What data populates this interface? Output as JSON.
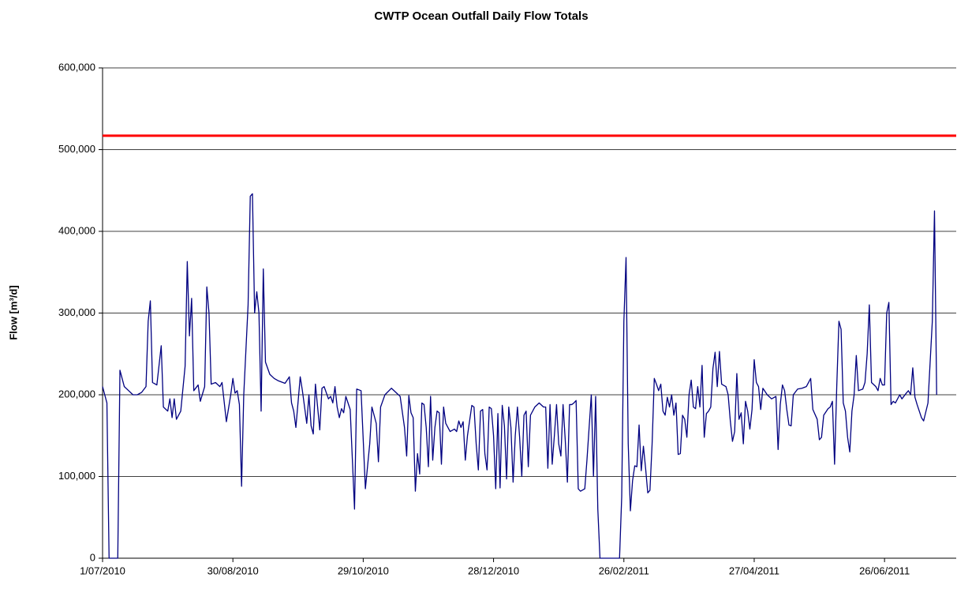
{
  "chart_data": {
    "type": "line",
    "title": "CWTP Ocean Outfall Daily Flow Totals",
    "y_label": "Flow [m³/d]",
    "color": "#000080",
    "threshold": 517000,
    "threshold_color": "#ff0000",
    "xlim": [
      0,
      393
    ],
    "ylim": [
      0,
      600000
    ],
    "grid": true,
    "xticks": [
      {
        "value": 0,
        "label": "1/07/2010"
      },
      {
        "value": 60,
        "label": "30/08/2010"
      },
      {
        "value": 120,
        "label": "29/10/2010"
      },
      {
        "value": 180,
        "label": "28/12/2010"
      },
      {
        "value": 240,
        "label": "26/02/2011"
      },
      {
        "value": 300,
        "label": "27/04/2011"
      },
      {
        "value": 360,
        "label": "26/06/2011"
      }
    ],
    "yticks": [
      0,
      {
        "value": 100000,
        "label": "100,000"
      },
      {
        "value": 200000,
        "label": "200,000"
      },
      {
        "value": 300000,
        "label": "300,000"
      },
      {
        "value": 400000,
        "label": "400,000"
      },
      {
        "value": 500000,
        "label": "500,000"
      },
      {
        "value": 600000,
        "label": "600,000"
      }
    ],
    "x": [
      0,
      2,
      3,
      7,
      8,
      10,
      12,
      14,
      16,
      18,
      20,
      21,
      22,
      23,
      25,
      27,
      28,
      30,
      31,
      32,
      33,
      34,
      36,
      38,
      39,
      40,
      41,
      42,
      44,
      45,
      47,
      48,
      49,
      50,
      52,
      54,
      55,
      57,
      59,
      60,
      61,
      62,
      63,
      64,
      65,
      67,
      68,
      69,
      70,
      71,
      72,
      73,
      74,
      75,
      77,
      79,
      81,
      84,
      86,
      87,
      88,
      89,
      91,
      92,
      94,
      95,
      96,
      97,
      98,
      100,
      101,
      102,
      104,
      105,
      106,
      107,
      108,
      109,
      110,
      111,
      112,
      114,
      116,
      117,
      119,
      121,
      123,
      124,
      126,
      127,
      128,
      130,
      133,
      135,
      137,
      139,
      140,
      141,
      142,
      143,
      144,
      145,
      146,
      147,
      148,
      149,
      150,
      151,
      152,
      153,
      154,
      155,
      156,
      157,
      158,
      160,
      162,
      163,
      164,
      165,
      166,
      167,
      168,
      170,
      171,
      172,
      173,
      174,
      175,
      176,
      177,
      178,
      179,
      180,
      181,
      182,
      183,
      184,
      185,
      186,
      187,
      188,
      189,
      190,
      191,
      192,
      193,
      194,
      195,
      196,
      197,
      199,
      201,
      203,
      204,
      205,
      206,
      207,
      208,
      209,
      210,
      211,
      212,
      213,
      214,
      215,
      216,
      217,
      218,
      219,
      220,
      222,
      223,
      225,
      226,
      227,
      228,
      229,
      238,
      239,
      240,
      241,
      242,
      243,
      244,
      245,
      246,
      247,
      248,
      249,
      250,
      251,
      252,
      253,
      254,
      255,
      256,
      257,
      258,
      259,
      260,
      261,
      262,
      263,
      264,
      265,
      266,
      267,
      268,
      269,
      270,
      271,
      272,
      273,
      274,
      275,
      276,
      277,
      278,
      279,
      280,
      281,
      282,
      283,
      284,
      285,
      287,
      288,
      289,
      290,
      291,
      292,
      293,
      294,
      295,
      296,
      297,
      298,
      299,
      300,
      301,
      302,
      303,
      304,
      306,
      308,
      310,
      311,
      312,
      313,
      314,
      315,
      316,
      317,
      318,
      320,
      322,
      324,
      326,
      327,
      329,
      330,
      331,
      332,
      334,
      335,
      336,
      337,
      338,
      339,
      340,
      341,
      342,
      343,
      344,
      345,
      346,
      347,
      348,
      350,
      351,
      352,
      353,
      354,
      356,
      357,
      358,
      359,
      360,
      361,
      362,
      363,
      364,
      365,
      367,
      368,
      370,
      371,
      372,
      373,
      374,
      375,
      377,
      378,
      380,
      382,
      383,
      384
    ],
    "values": [
      210000,
      190000,
      0,
      0,
      230000,
      210000,
      205000,
      200000,
      200000,
      203000,
      210000,
      290000,
      315000,
      215000,
      212000,
      260000,
      185000,
      180000,
      195000,
      172000,
      195000,
      170000,
      180000,
      235000,
      363000,
      272000,
      318000,
      205000,
      212000,
      192000,
      210000,
      332000,
      300000,
      213000,
      215000,
      210000,
      215000,
      167000,
      200000,
      220000,
      202000,
      205000,
      188000,
      88000,
      200000,
      310000,
      443000,
      446000,
      300000,
      326000,
      300000,
      180000,
      354000,
      240000,
      225000,
      220000,
      217000,
      214000,
      222000,
      190000,
      180000,
      160000,
      222000,
      205000,
      165000,
      200000,
      162000,
      152000,
      213000,
      157000,
      208000,
      210000,
      195000,
      198000,
      190000,
      210000,
      185000,
      172000,
      183000,
      178000,
      198000,
      182000,
      60000,
      207000,
      205000,
      85000,
      140000,
      185000,
      165000,
      118000,
      185000,
      200000,
      208000,
      203000,
      198000,
      160000,
      125000,
      199000,
      178000,
      172000,
      82000,
      128000,
      103000,
      190000,
      188000,
      160000,
      112000,
      198000,
      120000,
      160000,
      180000,
      178000,
      115000,
      185000,
      165000,
      155000,
      158000,
      155000,
      168000,
      160000,
      167000,
      120000,
      150000,
      187000,
      185000,
      140000,
      108000,
      180000,
      182000,
      128000,
      108000,
      185000,
      183000,
      150000,
      85000,
      177000,
      86000,
      187000,
      162000,
      97000,
      185000,
      160000,
      93000,
      150000,
      185000,
      148000,
      100000,
      175000,
      180000,
      112000,
      175000,
      185000,
      190000,
      185000,
      185000,
      110000,
      188000,
      115000,
      150000,
      188000,
      140000,
      125000,
      188000,
      145000,
      93000,
      188000,
      188000,
      190000,
      193000,
      85000,
      82000,
      85000,
      120000,
      200000,
      100000,
      198000,
      60000,
      0,
      0,
      75000,
      290000,
      368000,
      140000,
      58000,
      95000,
      113000,
      112000,
      163000,
      107000,
      137000,
      110000,
      80000,
      83000,
      140000,
      220000,
      213000,
      205000,
      213000,
      180000,
      175000,
      197000,
      185000,
      200000,
      175000,
      190000,
      127000,
      128000,
      175000,
      170000,
      148000,
      200000,
      218000,
      185000,
      183000,
      210000,
      185000,
      236000,
      148000,
      177000,
      180000,
      185000,
      232000,
      252000,
      210000,
      253000,
      213000,
      210000,
      200000,
      168000,
      143000,
      155000,
      226000,
      170000,
      178000,
      140000,
      192000,
      180000,
      158000,
      182000,
      243000,
      215000,
      210000,
      182000,
      208000,
      200000,
      195000,
      198000,
      133000,
      188000,
      212000,
      205000,
      182000,
      163000,
      162000,
      200000,
      207000,
      208000,
      210000,
      220000,
      182000,
      170000,
      145000,
      148000,
      175000,
      183000,
      185000,
      192000,
      115000,
      210000,
      290000,
      280000,
      190000,
      180000,
      148000,
      130000,
      180000,
      200000,
      248000,
      205000,
      207000,
      215000,
      250000,
      310000,
      215000,
      210000,
      205000,
      220000,
      212000,
      212000,
      300000,
      313000,
      188000,
      192000,
      190000,
      200000,
      195000,
      202000,
      205000,
      200000,
      233000,
      197000,
      188000,
      172000,
      168000,
      190000,
      290000,
      425000,
      200000
    ]
  }
}
